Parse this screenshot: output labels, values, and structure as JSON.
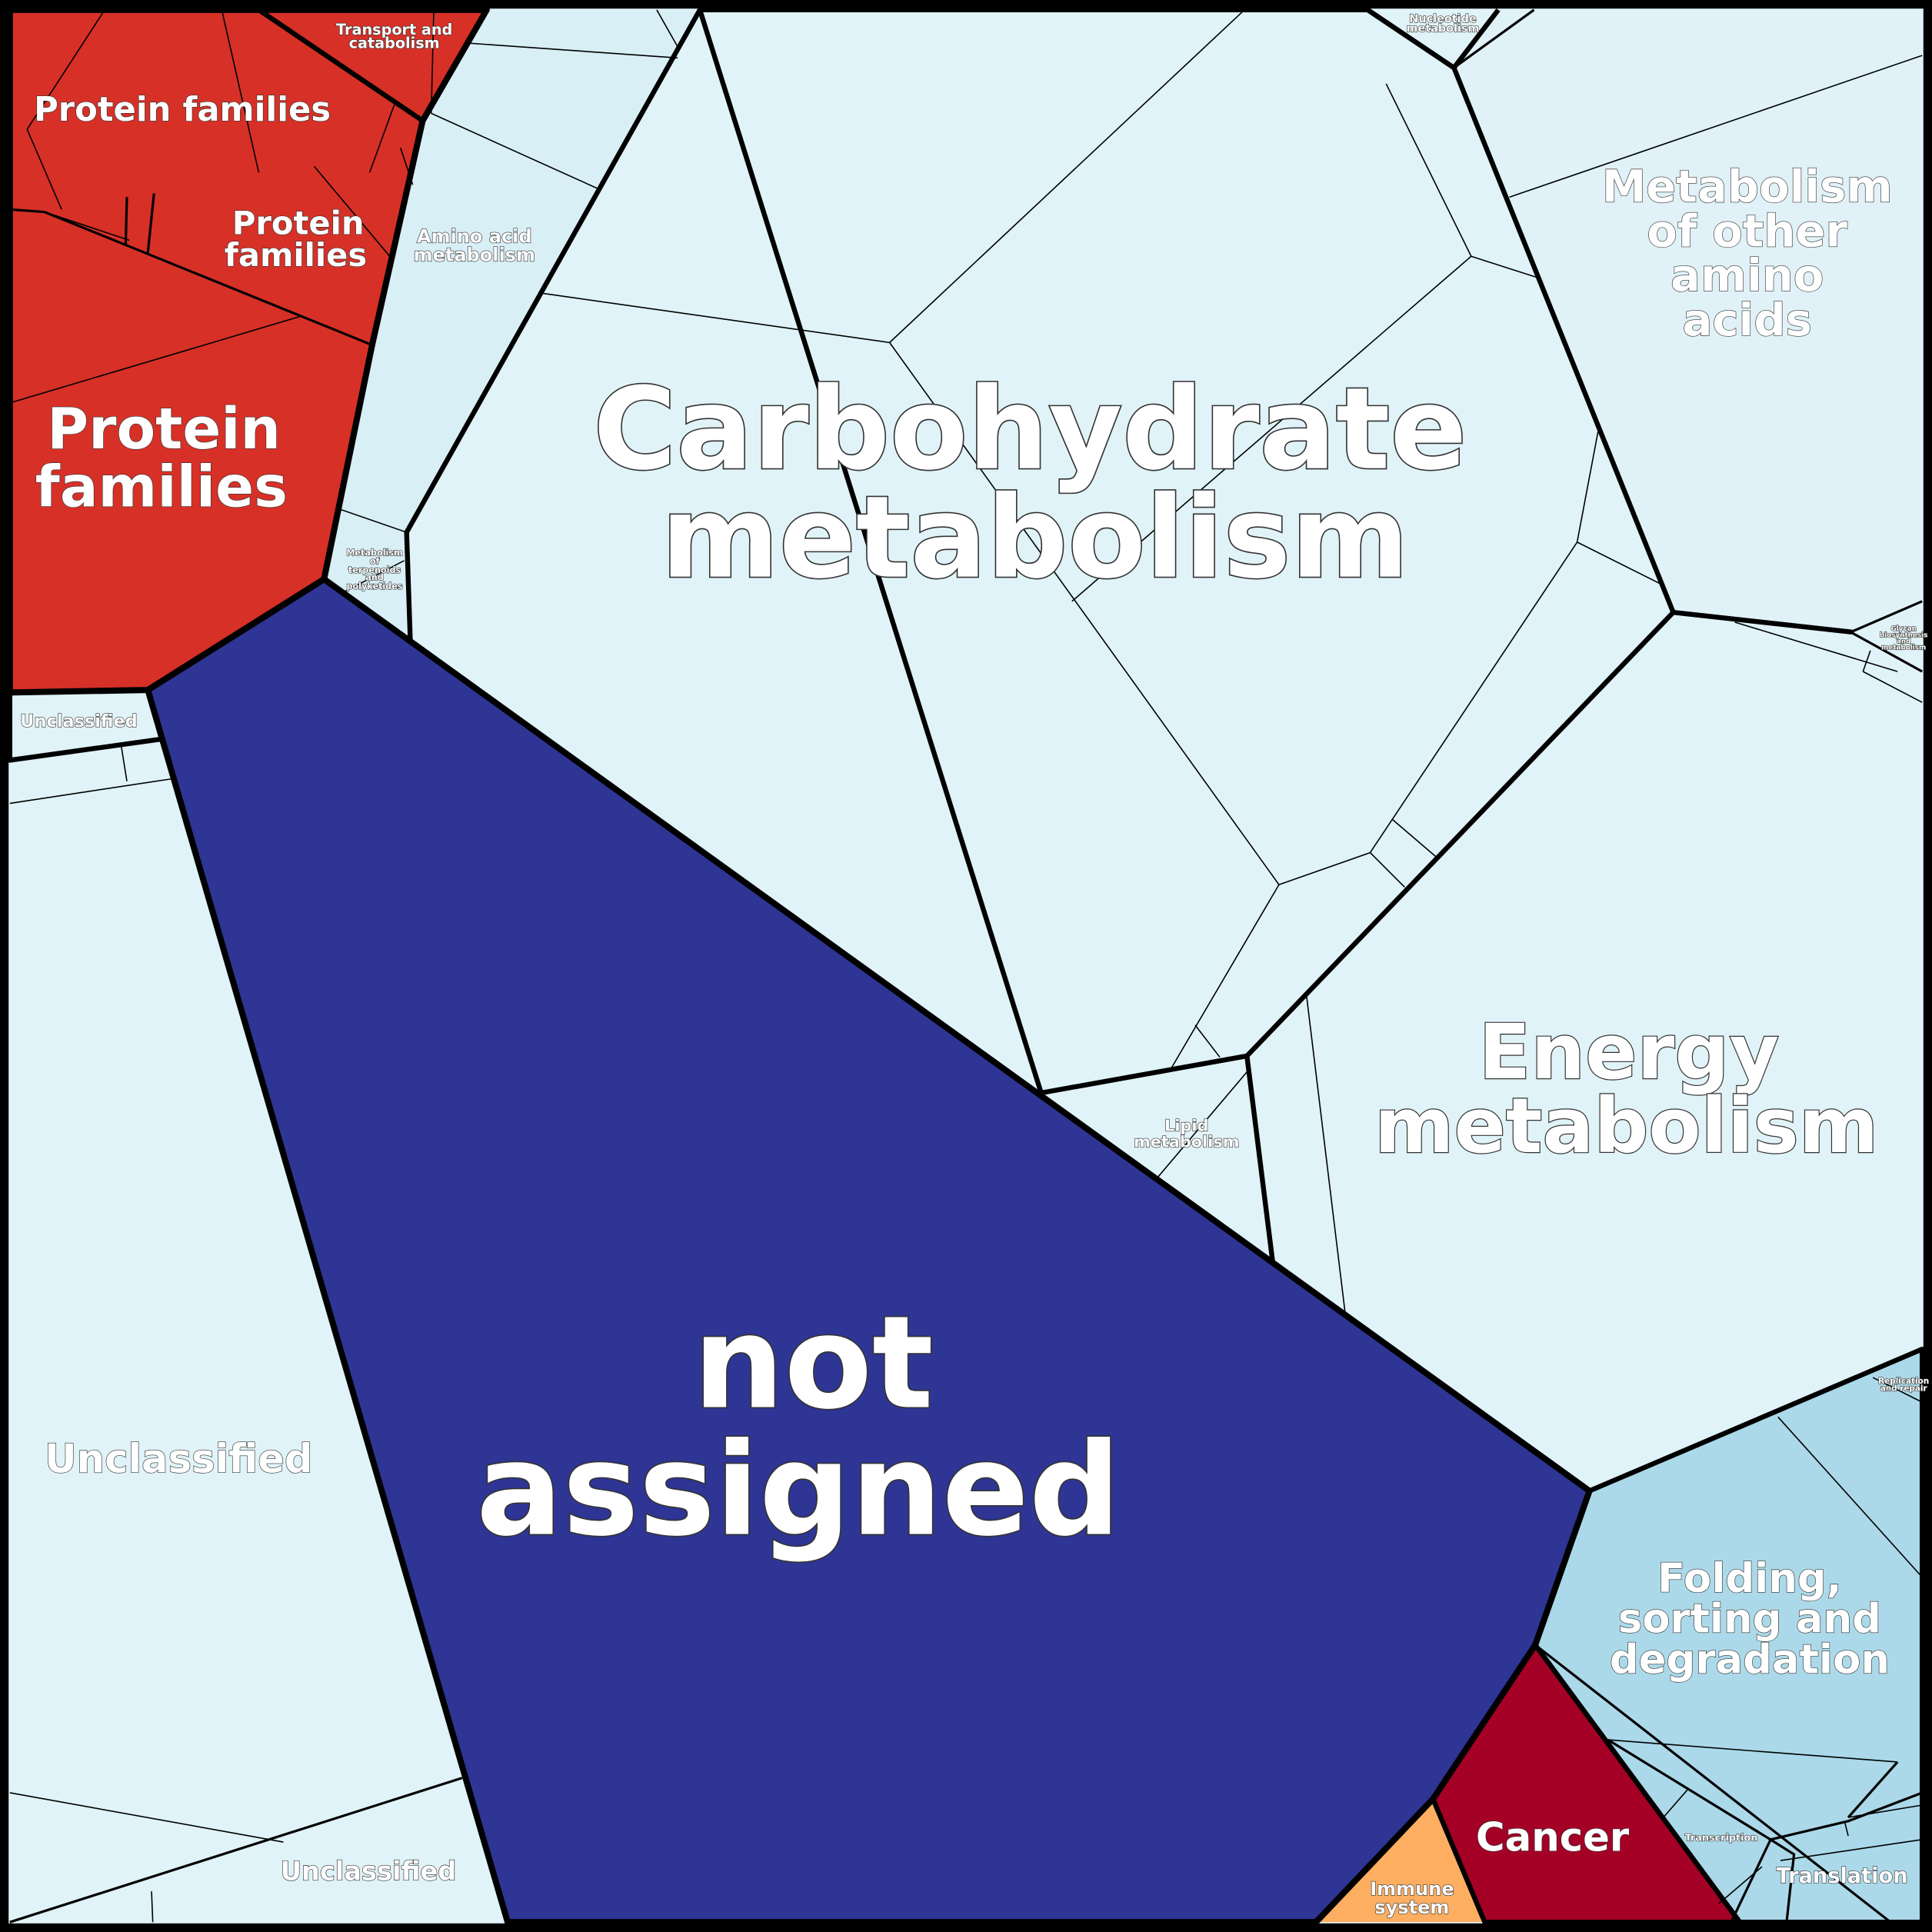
{
  "colors": {
    "background": "#e0f3f8",
    "protein_families": "#d73027",
    "not_assigned": "#2e3594",
    "cancer": "#a50026",
    "immune_system": "#fdae61",
    "genetic_information": "#abd9e9",
    "border": "#000000"
  },
  "labels": {
    "carbohydrate": [
      "Carbohydrate",
      "metabolism"
    ],
    "not_assigned": [
      "not",
      "assigned"
    ],
    "energy": [
      "Energy",
      "metabolism"
    ],
    "other_amino": [
      "Metabolism",
      "of other",
      "amino",
      "acids"
    ],
    "folding": [
      "Folding,",
      "sorting and",
      "degradation"
    ],
    "cancer": "Cancer",
    "immune": [
      "Immune",
      "system"
    ],
    "translation": "Translation",
    "transcription": "Transcription",
    "replication": [
      "Replication",
      "and repair"
    ],
    "glycan": [
      "Glycan",
      "biosynthesis",
      "and",
      "metabolism"
    ],
    "nucleotide": [
      "Nucleotide",
      "metabolism"
    ],
    "lipid": [
      "Lipid",
      "metabolism"
    ],
    "amino_acid": [
      "Amino acid",
      "metabolism"
    ],
    "terpenoids": [
      "Metabolism",
      "of",
      "terpenoids",
      "and",
      "polyketides"
    ],
    "transport": [
      "Transport and",
      "catabolism"
    ],
    "protein_families_1": "Protein families",
    "protein_families_2": [
      "Protein",
      "families"
    ],
    "protein_families_3": [
      "Protein",
      "families"
    ],
    "unclassified_1": "Unclassified",
    "unclassified_2": "Unclassified",
    "unclassified_3": "Unclassified"
  }
}
